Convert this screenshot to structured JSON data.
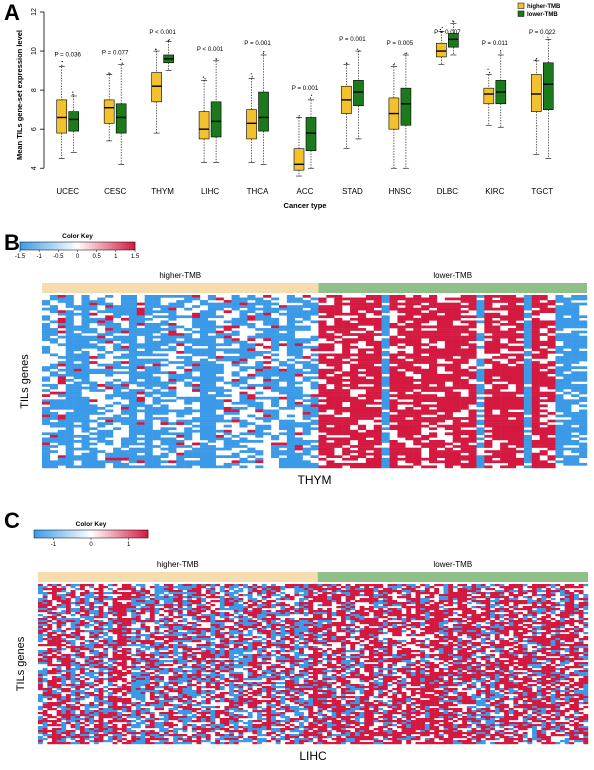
{
  "panels": {
    "A": {
      "letter": "A",
      "chart_data": {
        "type": "box",
        "ylabel": "Mean TILs gene-set expression level",
        "xlabel": "Cancer type",
        "ylim": [
          3.5,
          12
        ],
        "yticks": [
          4,
          6,
          8,
          10,
          12
        ],
        "legend": {
          "placement": "top-right",
          "entries": [
            {
              "name": "higher-TMB",
              "color": "#F2C12E"
            },
            {
              "name": "lower-TMB",
              "color": "#1B7A1B"
            }
          ]
        },
        "categories": [
          "UCEC",
          "CESC",
          "THYM",
          "LIHC",
          "THCA",
          "ACC",
          "STAD",
          "HNSC",
          "DLBC",
          "KIRC",
          "TGCT"
        ],
        "pvalues": [
          "P = 0.036",
          "P = 0.077",
          "P < 0.001",
          "P < 0.001",
          "P = 0.001",
          "P = 0.001",
          "P = 0.001",
          "P = 0.005",
          "P = 0.007",
          "P = 0.011",
          "P = 0.022"
        ],
        "series": [
          {
            "name": "higher-TMB",
            "color": "#F2C12E",
            "boxes": [
              {
                "min": 4.5,
                "q1": 5.8,
                "median": 6.6,
                "q3": 7.5,
                "max": 9.2
              },
              {
                "min": 5.4,
                "q1": 6.3,
                "median": 7.1,
                "q3": 7.5,
                "max": 8.8
              },
              {
                "min": 5.8,
                "q1": 7.4,
                "median": 8.2,
                "q3": 8.9,
                "max": 10.0
              },
              {
                "min": 4.3,
                "q1": 5.5,
                "median": 6.0,
                "q3": 6.9,
                "max": 8.5
              },
              {
                "min": 4.3,
                "q1": 5.5,
                "median": 6.3,
                "q3": 7.0,
                "max": 8.6
              },
              {
                "min": 3.6,
                "q1": 3.9,
                "median": 4.2,
                "q3": 5.0,
                "max": 6.6
              },
              {
                "min": 5.0,
                "q1": 6.8,
                "median": 7.5,
                "q3": 8.2,
                "max": 9.3
              },
              {
                "min": 4.0,
                "q1": 6.0,
                "median": 6.8,
                "q3": 7.6,
                "max": 9.2
              },
              {
                "min": 9.3,
                "q1": 9.7,
                "median": 10.0,
                "q3": 10.4,
                "max": 11.0
              },
              {
                "min": 6.2,
                "q1": 7.3,
                "median": 7.8,
                "q3": 8.1,
                "max": 8.8
              },
              {
                "min": 4.7,
                "q1": 6.9,
                "median": 7.8,
                "q3": 8.8,
                "max": 9.5
              }
            ]
          },
          {
            "name": "lower-TMB",
            "color": "#1B7A1B",
            "boxes": [
              {
                "min": 4.8,
                "q1": 5.9,
                "median": 6.5,
                "q3": 6.9,
                "max": 7.7
              },
              {
                "min": 4.2,
                "q1": 5.8,
                "median": 6.6,
                "q3": 7.3,
                "max": 9.3
              },
              {
                "min": 9.0,
                "q1": 9.4,
                "median": 9.6,
                "q3": 9.8,
                "max": 10.5
              },
              {
                "min": 4.3,
                "q1": 5.6,
                "median": 6.4,
                "q3": 7.4,
                "max": 9.5
              },
              {
                "min": 4.2,
                "q1": 5.9,
                "median": 6.6,
                "q3": 7.9,
                "max": 9.8
              },
              {
                "min": 4.0,
                "q1": 4.9,
                "median": 5.8,
                "q3": 6.6,
                "max": 7.5
              },
              {
                "min": 5.5,
                "q1": 7.2,
                "median": 7.9,
                "q3": 8.5,
                "max": 10.0
              },
              {
                "min": 4.0,
                "q1": 6.2,
                "median": 7.3,
                "q3": 8.1,
                "max": 9.8
              },
              {
                "min": 9.8,
                "q1": 10.2,
                "median": 10.6,
                "q3": 10.9,
                "max": 11.4
              },
              {
                "min": 6.1,
                "q1": 7.3,
                "median": 7.9,
                "q3": 8.5,
                "max": 9.8
              },
              {
                "min": 4.5,
                "q1": 7.0,
                "median": 8.3,
                "q3": 9.4,
                "max": 10.6
              }
            ]
          }
        ]
      }
    },
    "B": {
      "letter": "B",
      "chart_data": {
        "type": "heatmap",
        "title": "THYM",
        "ylabel": "TILs genes",
        "color_key": {
          "title": "Color Key",
          "ticks": [
            "-1.5",
            "-1",
            "-0.5",
            "0",
            "0.5",
            "1",
            "1.5"
          ],
          "low_color": "#3A9AE8",
          "mid_color": "#FFFFFF",
          "high_color": "#D4183F"
        },
        "groups": [
          {
            "name": "higher-TMB",
            "color": "#F5DDB0",
            "columns": 35
          },
          {
            "name": "lower-TMB",
            "color": "#8FC08A",
            "columns": 34
          }
        ],
        "rows": 68
      }
    },
    "C": {
      "letter": "C",
      "chart_data": {
        "type": "heatmap",
        "title": "LIHC",
        "ylabel": "TILs genes",
        "color_key": {
          "title": "Color Key",
          "ticks": [
            "-1",
            "0",
            "1"
          ],
          "low_color": "#3A9AE8",
          "mid_color": "#FFFFFF",
          "high_color": "#D4183F"
        },
        "groups": [
          {
            "name": "higher-TMB",
            "color": "#F5DDB0",
            "columns": 60
          },
          {
            "name": "lower-TMB",
            "color": "#8FC08A",
            "columns": 58
          }
        ],
        "rows": 80
      }
    }
  }
}
